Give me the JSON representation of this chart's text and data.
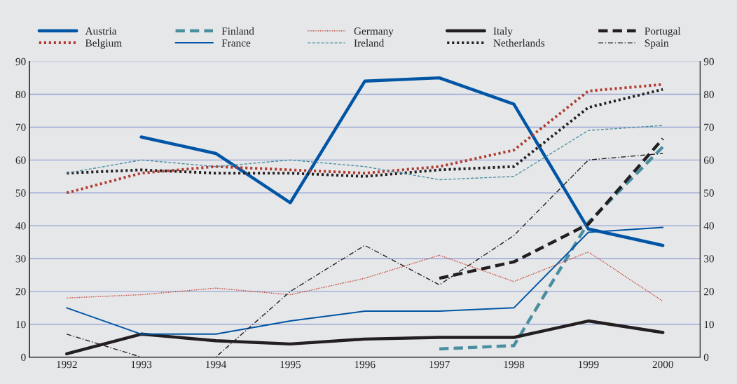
{
  "chart_data": {
    "type": "line",
    "categories": [
      "1992",
      "1993",
      "1994",
      "1995",
      "1996",
      "1997",
      "1998",
      "1999",
      "2000"
    ],
    "series": [
      {
        "name": "Austria",
        "color": "#0055a4",
        "line_style": "solid",
        "values": [
          null,
          67,
          62,
          47,
          84,
          85,
          77,
          39,
          34
        ]
      },
      {
        "name": "Belgium",
        "color": "#b03a2e",
        "line_style": "dotted",
        "values": [
          50,
          56,
          58,
          57,
          56,
          58,
          63,
          81,
          83
        ]
      },
      {
        "name": "Finland",
        "color": "#4a8fa0",
        "line_style": "dashed",
        "values": [
          null,
          null,
          null,
          null,
          null,
          2.5,
          3.5,
          41,
          64
        ]
      },
      {
        "name": "France",
        "color": "#0055a4",
        "line_style": "solid",
        "values": [
          15,
          7,
          7,
          11,
          14,
          14,
          15,
          38,
          39.5
        ]
      },
      {
        "name": "Germany",
        "color": "#c0392b",
        "line_style": "dotted",
        "values": [
          18,
          19,
          21,
          19,
          24,
          31,
          23,
          32,
          17
        ]
      },
      {
        "name": "Ireland",
        "color": "#4a8fa0",
        "line_style": "dashed",
        "values": [
          56,
          60,
          58,
          60,
          58,
          54,
          55,
          69,
          70.5
        ]
      },
      {
        "name": "Italy",
        "color": "#231f20",
        "line_style": "solid",
        "values": [
          1,
          7,
          5,
          4,
          5.5,
          6,
          6,
          11,
          7.5
        ]
      },
      {
        "name": "Netherlands",
        "color": "#231f20",
        "line_style": "dotted",
        "values": [
          56,
          57,
          56,
          56,
          55,
          57,
          58,
          76,
          81.5
        ]
      },
      {
        "name": "Portugal",
        "color": "#231f20",
        "line_style": "dashed",
        "values": [
          null,
          null,
          null,
          null,
          null,
          24,
          29,
          40.5,
          66.5
        ]
      },
      {
        "name": "Spain",
        "color": "#231f20",
        "line_style": "dashdot",
        "values": [
          7,
          0,
          0,
          20,
          34,
          22,
          37,
          60,
          62
        ]
      }
    ],
    "ylim": [
      0,
      90
    ],
    "yticks": [
      0,
      10,
      20,
      30,
      40,
      50,
      60,
      70,
      80,
      90
    ],
    "y2lim": [
      0,
      90
    ],
    "y2ticks": [
      0,
      10,
      20,
      30,
      40,
      50,
      60,
      70,
      80,
      90
    ],
    "grid": true,
    "legend": "top"
  }
}
